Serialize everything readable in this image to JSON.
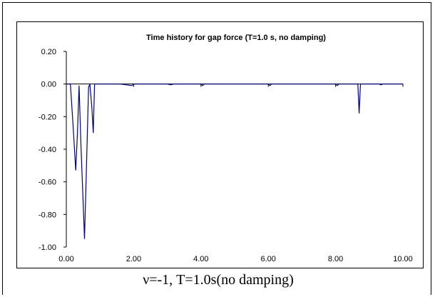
{
  "caption": "ν=-1, T=1.0s(no damping)",
  "chart_data": {
    "type": "line",
    "title": "Time history for gap force (T=1.0 s, no damping)",
    "xlabel": "",
    "ylabel": "",
    "xlim": [
      0,
      10
    ],
    "ylim": [
      -1.0,
      0.2
    ],
    "x_ticks": [
      0,
      2,
      4,
      6,
      8,
      10
    ],
    "x_tick_labels": [
      "0.00",
      "2.00",
      "4.00",
      "6.00",
      "8.00",
      "10.00"
    ],
    "y_ticks": [
      0.2,
      0,
      -0.2,
      -0.4,
      -0.6,
      -0.8,
      -1.0
    ],
    "y_tick_labels": [
      "0.20",
      "0.00",
      "-0.20",
      "-0.40",
      "-0.60",
      "-0.80",
      "-1.00"
    ],
    "grid": false,
    "legend": "none",
    "series": [
      {
        "color": "#000080",
        "points": [
          [
            0.0,
            0.0
          ],
          [
            0.12,
            0.0
          ],
          [
            0.2,
            -0.25
          ],
          [
            0.28,
            -0.53
          ],
          [
            0.33,
            -0.3
          ],
          [
            0.38,
            -0.01
          ],
          [
            0.43,
            -0.35
          ],
          [
            0.5,
            -0.73
          ],
          [
            0.54,
            -0.95
          ],
          [
            0.6,
            -0.5
          ],
          [
            0.66,
            -0.02
          ],
          [
            0.7,
            0.0
          ],
          [
            0.76,
            -0.15
          ],
          [
            0.8,
            -0.3
          ],
          [
            0.84,
            0.0
          ],
          [
            1.6,
            0.0
          ],
          [
            1.95,
            -0.01
          ],
          [
            2.0,
            0.0
          ],
          [
            3.0,
            0.0
          ],
          [
            3.1,
            -0.005
          ],
          [
            3.2,
            0.0
          ],
          [
            4.0,
            0.0
          ],
          [
            4.05,
            -0.01
          ],
          [
            4.1,
            0.0
          ],
          [
            6.0,
            0.0
          ],
          [
            6.05,
            -0.01
          ],
          [
            6.1,
            0.0
          ],
          [
            8.0,
            0.0
          ],
          [
            8.05,
            -0.01
          ],
          [
            8.1,
            0.0
          ],
          [
            8.66,
            0.0
          ],
          [
            8.7,
            -0.18
          ],
          [
            8.74,
            0.0
          ],
          [
            9.3,
            0.0
          ],
          [
            9.35,
            -0.005
          ],
          [
            9.4,
            0.0
          ],
          [
            10.0,
            0.0
          ]
        ]
      }
    ]
  }
}
